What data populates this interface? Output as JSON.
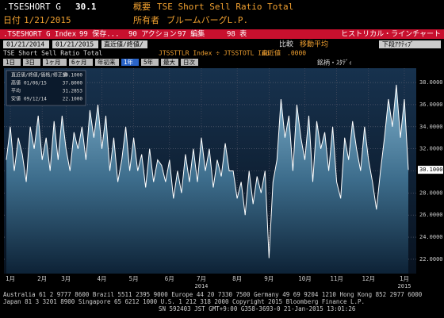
{
  "header": {
    "ticker": ".TSESHORT G",
    "last": "30.1",
    "desc_label": "概要",
    "desc": "TSE Short Sell Ratio Total",
    "date_label": "日付",
    "date": "1/21/2015",
    "owner_label": "所有者",
    "owner": "ブルームバーグL.P."
  },
  "toolbar": {
    "security": ".TSESHORT G Index",
    "buttons": [
      "99 保存...",
      "90 アクション",
      "97 編集",
      "98 表"
    ],
    "view": "ヒストリカル・ラインチャート"
  },
  "controls": {
    "start": "01/21/2014",
    "end": "01/21/2015",
    "field": "直近値/終値/",
    "compare": "比較",
    "moving_avg": "移動平均",
    "lower": "下段ｱｸﾃｨﾌﾞ"
  },
  "periods": {
    "items": [
      "1日",
      "3日",
      "1ヶ月",
      "6ヶ月",
      "年初来",
      "1年",
      "5年",
      "最大",
      "日次"
    ],
    "active": 5
  },
  "formula": {
    "text": "JTSSTTLR Index ÷ JTSSTOTL Ind",
    "field": "直近値",
    "value": ".0000",
    "tools": "銘柄・ｽﾀﾃﾞｨ"
  },
  "chart_data": {
    "type": "line",
    "series": [
      {
        "name": "TSE Short Sell Ratio Total",
        "color": "#ffffff",
        "values": [
          31,
          34,
          30,
          33,
          31.5,
          29,
          34,
          32,
          35,
          31,
          33,
          30,
          34.5,
          31,
          35,
          32,
          30,
          33.5,
          32,
          34,
          31,
          35.5,
          33,
          36,
          32,
          35,
          30,
          33,
          29,
          31,
          34,
          30,
          33,
          30,
          31.5,
          28.5,
          32,
          29,
          31,
          30.5,
          29,
          31,
          27.5,
          30,
          28,
          31.5,
          29,
          32,
          29,
          33,
          30,
          32,
          28.5,
          31,
          29.5,
          32.5,
          30,
          30,
          27.5,
          29,
          26,
          30,
          27,
          29.5,
          28,
          30,
          22.1,
          29,
          31,
          36.5,
          33,
          35,
          30,
          36,
          33,
          31,
          35,
          29,
          34.5,
          32,
          33.5,
          30,
          34,
          29,
          27.5,
          33,
          31,
          34.5,
          32,
          30,
          34,
          31,
          29,
          26.5,
          30,
          33,
          36.5,
          34,
          37.8,
          33,
          36.5,
          30.1
        ]
      }
    ],
    "xlim": [
      0,
      101
    ],
    "xticks": [
      {
        "value": 1,
        "label": "1月"
      },
      {
        "value": 9,
        "label": "2月"
      },
      {
        "value": 15,
        "label": "3月"
      },
      {
        "value": 24,
        "label": "4月"
      },
      {
        "value": 32,
        "label": "5月"
      },
      {
        "value": 41,
        "label": "6月"
      },
      {
        "value": 49,
        "label": "7月"
      },
      {
        "value": 58,
        "label": "8月"
      },
      {
        "value": 66,
        "label": "9月"
      },
      {
        "value": 75,
        "label": "10月"
      },
      {
        "value": 83,
        "label": "11月"
      },
      {
        "value": 91,
        "label": "12月"
      },
      {
        "value": 100,
        "label": "1月"
      }
    ],
    "year_labels": [
      {
        "value": 49,
        "label": "2014"
      },
      {
        "value": 100,
        "label": "2015"
      }
    ],
    "ylim": [
      20.7,
      39.3
    ],
    "yticks": [
      {
        "value": 22,
        "label": "22.0000"
      },
      {
        "value": 24,
        "label": "24.0000"
      },
      {
        "value": 26,
        "label": "26.0000"
      },
      {
        "value": 28,
        "label": "28.0000"
      },
      {
        "value": 30,
        "label": "30.0000"
      },
      {
        "value": 32,
        "label": "32.0000"
      },
      {
        "value": 34,
        "label": "34.0000"
      },
      {
        "value": 36,
        "label": "36.0000"
      },
      {
        "value": 38,
        "label": "38.0000"
      }
    ],
    "last_tick": {
      "value": 30.1,
      "label": "30.1000"
    },
    "grid": true,
    "stats": [
      {
        "label": "直近値/終値/価格/修正値",
        "date": "",
        "value": "30.1000"
      },
      {
        "label": "高値",
        "date": "01/06/15",
        "value": "37.8000"
      },
      {
        "label": "平均",
        "date": "",
        "value": "31.2853"
      },
      {
        "label": "安値",
        "date": "09/12/14",
        "value": "22.1000"
      }
    ]
  },
  "footer": [
    "Australia 61 2 9777 8600 Brazil 5511 2395 9000 Europe 44 20 7330 7500 Germany 49 69 9204 1210 Hong Kong 852 2977 6000",
    "Japan 81 3 3201 8900          Singapore 65 6212 1000          U.S. 1 212 318 2000          Copyright 2015 Bloomberg Finance L.P.",
    "SN 592403 JST  GMT+9:00 G358-3693-0 21-Jan-2015 13:01:26"
  ]
}
